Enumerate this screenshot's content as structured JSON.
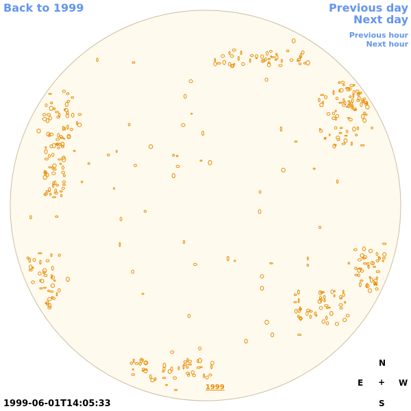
{
  "header": {
    "back_link": "Back to 1999",
    "previous_day": "Previous day",
    "next_day": "Next day",
    "previous_hour": "Previous hour",
    "next_hour": "Next hour"
  },
  "footer": {
    "timestamp": "1999-06-01T14:05:33",
    "year_link": "1999"
  },
  "compass": {
    "north": "N",
    "east": "E",
    "center": "+",
    "west": "W",
    "south": "S"
  }
}
